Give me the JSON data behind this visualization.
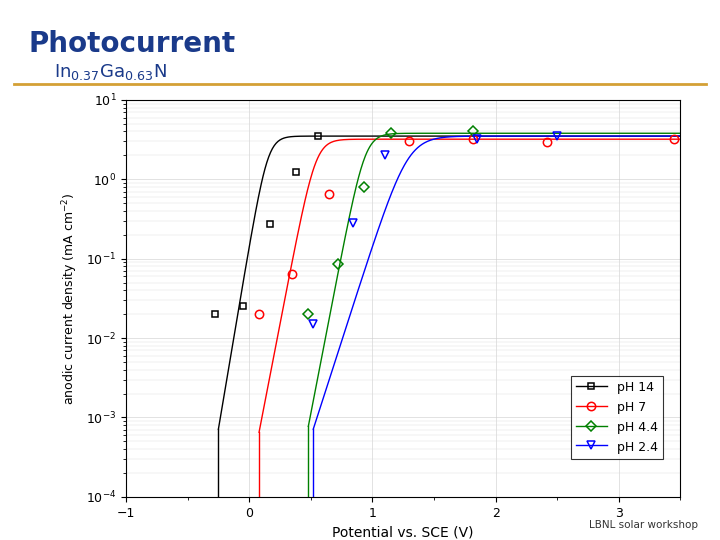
{
  "title": "Photocurrent",
  "subtitle_latex": "In$_{0.37}$Ga$_{0.63}$N",
  "xlabel": "Potential vs. SCE (V)",
  "ylabel": "anodic current density (mA cm$^{-2}$)",
  "title_color": "#1a3a8a",
  "subtitle_color": "#1a3a8a",
  "orange_line_color": "#D4A035",
  "footer_text": "LBNL solar workshop",
  "bg_color": "#ffffff",
  "plot_bg": "#ffffff",
  "xlim": [
    -1,
    3.5
  ],
  "ylim_min": 0.0001,
  "ylim_max": 10,
  "xticks": [
    -1,
    0,
    1,
    2,
    3
  ],
  "colors_order": [
    "black",
    "red",
    "green",
    "blue"
  ],
  "labels": {
    "black": "pH 14",
    "red": "pH 7",
    "green": "pH 4.4",
    "blue": "pH 2.4"
  },
  "markers": {
    "black": "s",
    "red": "o",
    "green": "D",
    "blue": "v"
  },
  "marker_sizes": {
    "black": 5,
    "red": 6,
    "green": 5,
    "blue": 6
  },
  "onsets": {
    "black": -0.25,
    "red": 0.08,
    "green": 0.48,
    "blue": 0.52
  },
  "knees": {
    "black": 0.22,
    "red": 0.62,
    "green": 1.02,
    "blue": 1.42
  },
  "sats": {
    "black": 3.5,
    "red": 3.2,
    "green": 3.8,
    "blue": 3.5
  },
  "marked_points": {
    "black": {
      "x": [
        -0.28,
        -0.05,
        0.17,
        0.38,
        0.56
      ],
      "y": [
        0.02,
        0.025,
        0.27,
        1.25,
        3.5
      ]
    },
    "red": {
      "x": [
        0.08,
        0.35,
        0.65,
        1.3,
        1.82,
        2.42,
        3.45
      ],
      "y": [
        0.02,
        0.065,
        0.65,
        3.05,
        3.2,
        2.95,
        3.2
      ]
    },
    "green": {
      "x": [
        0.48,
        0.72,
        0.93,
        1.15,
        1.82
      ],
      "y": [
        0.02,
        0.085,
        0.8,
        3.8,
        4.0
      ]
    },
    "blue": {
      "x": [
        0.52,
        0.84,
        1.1,
        1.85,
        2.5
      ],
      "y": [
        0.015,
        0.28,
        2.0,
        3.2,
        3.5
      ]
    }
  }
}
